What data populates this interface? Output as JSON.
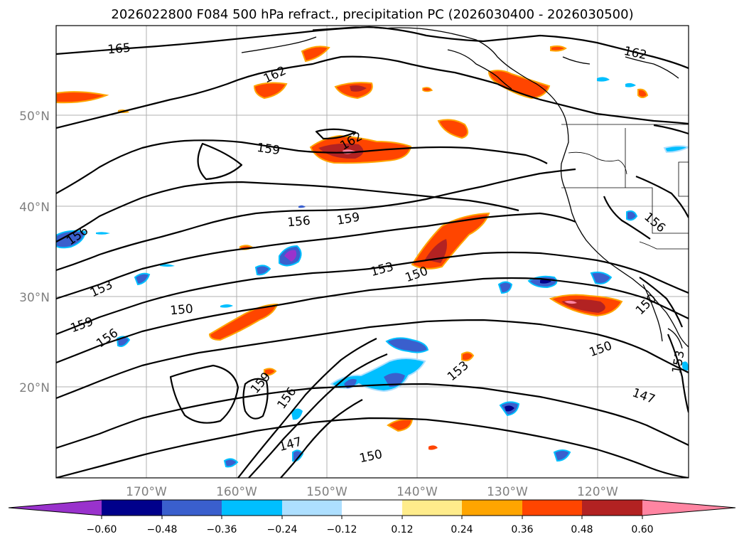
{
  "title": "2026022800 F084 500 hPa refract., precipitation PC (2026030400 - 2026030500)",
  "lat_labels": [
    "50°N",
    "40°N",
    "30°N",
    "20°N"
  ],
  "lon_labels": [
    "170°W",
    "160°W",
    "150°W",
    "140°W",
    "130°W",
    "120°W"
  ],
  "contour_labels": [
    "165",
    "162",
    "162",
    "162",
    "159",
    "159",
    "159",
    "159",
    "156",
    "156",
    "156",
    "156",
    "156",
    "153",
    "153",
    "153",
    "153",
    "150",
    "150",
    "150",
    "150",
    "150",
    "147",
    "147"
  ],
  "colorbar": {
    "ticks": [
      "−0.60",
      "−0.48",
      "−0.36",
      "−0.24",
      "−0.12",
      "0.12",
      "0.24",
      "0.36",
      "0.48",
      "0.60"
    ],
    "colors": {
      "neg_extend": "#9932CC",
      "neg_060": "#00008B",
      "neg_048": "#3A5FCD",
      "neg_036": "#00BFFF",
      "neg_024": "#ADDFFF",
      "neutral": "#FFFFFF",
      "pos_012": "#FFEC8B",
      "pos_024": "#FFA500",
      "pos_036": "#FF4500",
      "pos_048": "#B22222",
      "pos_extend": "#FF85A2"
    }
  }
}
